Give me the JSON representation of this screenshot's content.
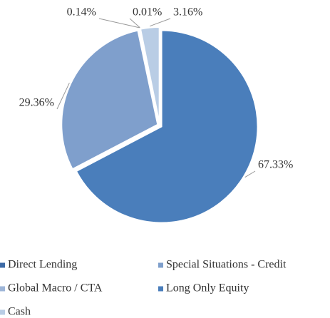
{
  "chart_data": {
    "type": "pie",
    "categories": [
      "Long Only Equity",
      "Special Situations - Credit",
      "Direct Lending",
      "Global Macro / CTA",
      "Cash"
    ],
    "values": [
      67.33,
      29.36,
      0.14,
      0.01,
      3.16
    ],
    "value_labels": [
      "67.33%",
      "29.36%",
      "0.14%",
      "0.01%",
      "3.16%"
    ],
    "colors": [
      "#4a7ebb",
      "#7f9fcc",
      "#3d6aa6",
      "#9db5d8",
      "#b9cde5"
    ],
    "legend": "bottom"
  }
}
